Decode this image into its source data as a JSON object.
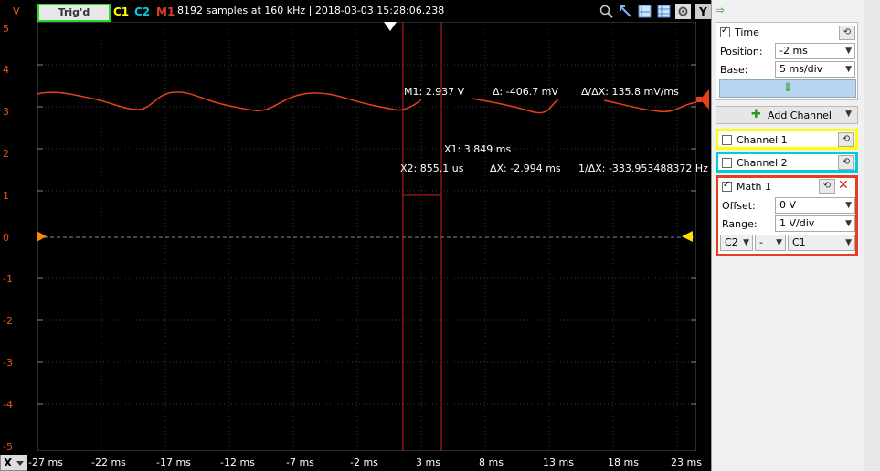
{
  "topbar": {
    "y_unit": "V",
    "trigger_label": "Trig'd",
    "chips": [
      {
        "label": "C1",
        "color": "#ffff00"
      },
      {
        "label": "C2",
        "color": "#00ccdd"
      },
      {
        "label": "M1",
        "color": "#e04020"
      }
    ],
    "status": "8192 samples at 160 kHz | 2018-03-03 15:28:06.238",
    "y_button": "Y",
    "icons": [
      "zoom-icon",
      "pan-icon",
      "cursor-icon",
      "grid-icon",
      "settings-icon"
    ]
  },
  "plot": {
    "y_ticks": [
      "5",
      "4",
      "3",
      "2",
      "1",
      "0",
      "-1",
      "-2",
      "-3",
      "-4",
      "-5"
    ],
    "x_ticks": [
      "-27 ms",
      "-22 ms",
      "-17 ms",
      "-12 ms",
      "-7 ms",
      "-2 ms",
      "3 ms",
      "8 ms",
      "13 ms",
      "18 ms",
      "23 ms"
    ],
    "x_axis_button": "X",
    "measurements": {
      "m1": "M1: 2.937 V",
      "delta": "Δ: -406.7 mV",
      "delta_dx": "Δ/ΔX: 135.8 mV/ms",
      "x1": "X1: 3.849 ms",
      "x2": "X2: 855.1 us",
      "dx": "ΔX: -2.994 ms",
      "inv_dx": "1/ΔX: -333.953488372 Hz"
    },
    "trace_color": "#e84018",
    "grid_color": "#444"
  },
  "panel": {
    "top_arrow": "⇨",
    "time": {
      "label": "Time",
      "checked": true,
      "position_label": "Position:",
      "position_value": "-2 ms",
      "base_label": "Base:",
      "base_value": "5 ms/div",
      "apply_arrow": "⇓"
    },
    "add_channel_label": "Add Channel",
    "channel1": {
      "label": "Channel 1",
      "checked": false,
      "border": "#ffff00"
    },
    "channel2": {
      "label": "Channel 2",
      "checked": false,
      "border": "#00ccdd"
    },
    "math1": {
      "label": "Math 1",
      "checked": true,
      "border": "#e04020",
      "offset_label": "Offset:",
      "offset_value": "0 V",
      "range_label": "Range:",
      "range_value": "1 V/div",
      "operand_a": "C2",
      "operator": "-",
      "operand_b": "C1"
    }
  }
}
